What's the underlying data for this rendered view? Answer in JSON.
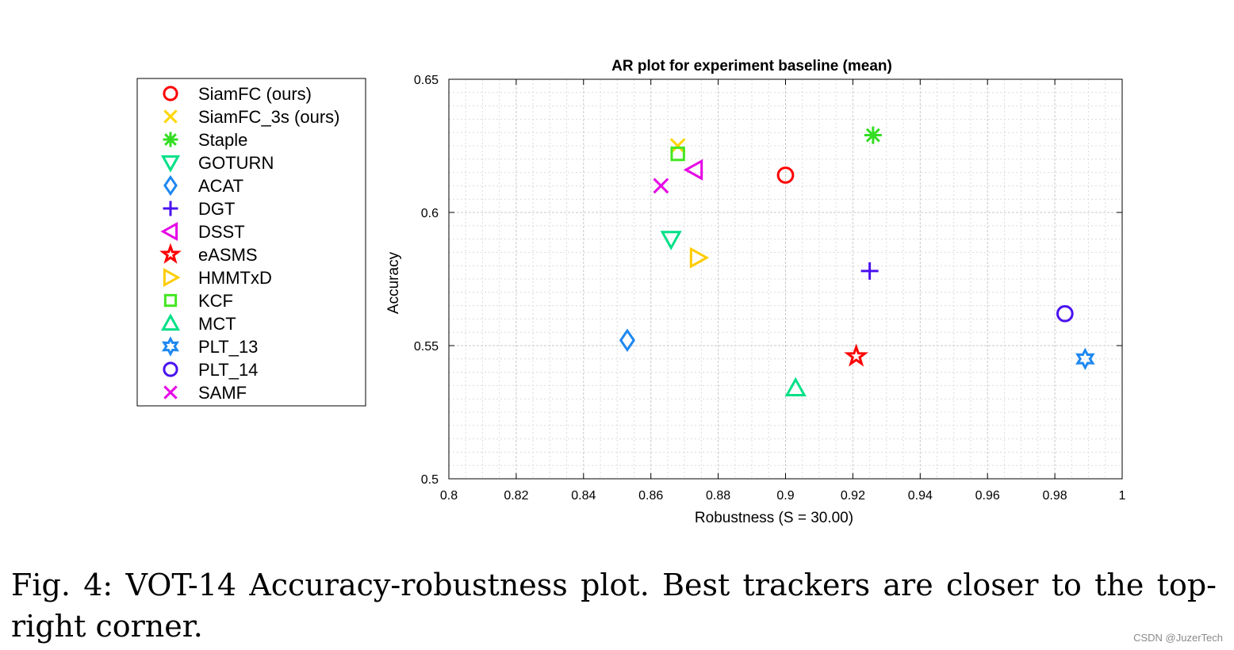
{
  "chart_data": {
    "type": "scatter",
    "title": "AR plot for experiment baseline (mean)",
    "xlabel": "Robustness (S = 30.00)",
    "ylabel": "Accuracy",
    "xlim": [
      0.8,
      1.0
    ],
    "ylim": [
      0.5,
      0.65
    ],
    "x_ticks": [
      0.8,
      0.82,
      0.84,
      0.86,
      0.88,
      0.9,
      0.92,
      0.94,
      0.96,
      0.98,
      1.0
    ],
    "x_tick_labels": [
      "0.8",
      "0.82",
      "0.84",
      "0.86",
      "0.88",
      "0.9",
      "0.92",
      "0.94",
      "0.96",
      "0.98",
      "1"
    ],
    "y_ticks": [
      0.5,
      0.55,
      0.6,
      0.65
    ],
    "y_tick_labels": [
      "0.5",
      "0.55",
      "0.6",
      "0.65"
    ],
    "grid": true,
    "legend_position": "left, outside plot",
    "series": [
      {
        "name": "SiamFC (ours)",
        "marker": "circle",
        "color": "#ff0000",
        "x": 0.9,
        "y": 0.614
      },
      {
        "name": "SiamFC_3s (ours)",
        "marker": "x",
        "color": "#ffd500",
        "x": 0.868,
        "y": 0.625
      },
      {
        "name": "Staple",
        "marker": "asterisk",
        "color": "#33dd22",
        "x": 0.926,
        "y": 0.629
      },
      {
        "name": "GOTURN",
        "marker": "triangle-down",
        "color": "#00e087",
        "x": 0.866,
        "y": 0.59
      },
      {
        "name": "ACAT",
        "marker": "diamond",
        "color": "#1e88f0",
        "x": 0.853,
        "y": 0.552
      },
      {
        "name": "DGT",
        "marker": "plus",
        "color": "#4a12ef",
        "x": 0.925,
        "y": 0.578
      },
      {
        "name": "DSST",
        "marker": "triangle-left",
        "color": "#e600e6",
        "x": 0.873,
        "y": 0.616
      },
      {
        "name": "eASMS",
        "marker": "star5",
        "color": "#ff0000",
        "x": 0.921,
        "y": 0.546
      },
      {
        "name": "HMMTxD",
        "marker": "triangle-right",
        "color": "#ffcc00",
        "x": 0.874,
        "y": 0.583
      },
      {
        "name": "KCF",
        "marker": "square",
        "color": "#44e622",
        "x": 0.868,
        "y": 0.622
      },
      {
        "name": "MCT",
        "marker": "triangle-up",
        "color": "#00e087",
        "x": 0.903,
        "y": 0.534
      },
      {
        "name": "PLT_13",
        "marker": "hexagram",
        "color": "#1e88f0",
        "x": 0.989,
        "y": 0.545
      },
      {
        "name": "PLT_14",
        "marker": "circle",
        "color": "#4a12ef",
        "x": 0.983,
        "y": 0.562
      },
      {
        "name": "SAMF",
        "marker": "x",
        "color": "#e600e6",
        "x": 0.863,
        "y": 0.61
      }
    ]
  },
  "caption": "Fig. 4: VOT-14 Accuracy-robustness plot. Best trackers are closer to the top-right corner.",
  "watermark": "CSDN @JuzerTech"
}
